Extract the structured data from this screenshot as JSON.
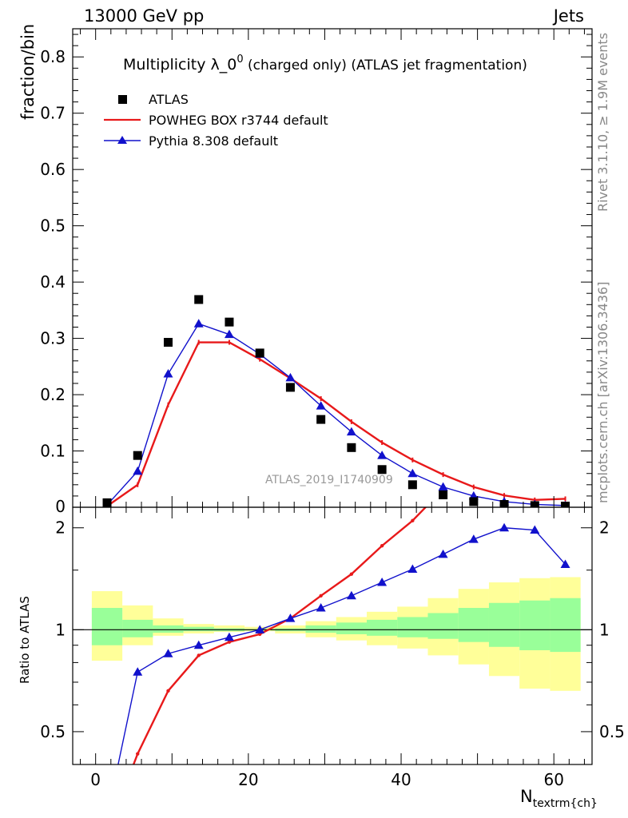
{
  "header": {
    "left": "13000 GeV pp",
    "right": "Jets"
  },
  "side_labels": {
    "rivet": "Rivet 3.1.10, ≥ 1.9M events",
    "mcplots": "mcplots.cern.ch [arXiv:1306.3436]"
  },
  "watermark": "ATLAS_2019_I1740909",
  "chart_data": [
    {
      "type": "scatter",
      "panel": "main",
      "title": "Multiplicity λ_0",
      "title_sup": "0",
      "title_suffix": " (charged only) (ATLAS jet fragmentation)",
      "ylabel": "fraction/bin",
      "xlim": [
        -3,
        65
      ],
      "ylim": [
        0,
        0.85
      ],
      "yticks": [
        0.1,
        0.2,
        0.3,
        0.4,
        0.5,
        0.6,
        0.7,
        0.8
      ],
      "ytick_labels": [
        "0.1",
        "0.2",
        "0.3",
        "0.4",
        "0.5",
        "0.6",
        "0.7",
        "0.8"
      ],
      "y0_label": "0",
      "legend": "top-left",
      "series": [
        {
          "name": "ATLAS",
          "color": "#000000",
          "marker": "square",
          "x": [
            1.5,
            5.5,
            9.5,
            13.5,
            17.5,
            21.5,
            25.5,
            29.5,
            33.5,
            37.5,
            41.5,
            45.5,
            49.5,
            53.5,
            57.5,
            61.5
          ],
          "y": [
            0.008,
            0.092,
            0.293,
            0.369,
            0.329,
            0.274,
            0.213,
            0.156,
            0.106,
            0.067,
            0.04,
            0.022,
            0.01,
            0.005,
            0.003,
            0.002
          ]
        },
        {
          "name": "POWHEG BOX r3744 default",
          "color": "#e8191a",
          "marker": "none",
          "x": [
            1.5,
            5.5,
            9.5,
            13.5,
            17.5,
            21.5,
            25.5,
            29.5,
            33.5,
            37.5,
            41.5,
            45.5,
            49.5,
            53.5,
            57.5,
            61.5
          ],
          "y": [
            0.002,
            0.04,
            0.182,
            0.293,
            0.293,
            0.263,
            0.229,
            0.193,
            0.152,
            0.115,
            0.084,
            0.058,
            0.036,
            0.021,
            0.013,
            0.015
          ]
        },
        {
          "name": "Pythia 8.308 default",
          "color": "#1111cc",
          "marker": "triangle",
          "x": [
            1.5,
            5.5,
            9.5,
            13.5,
            17.5,
            21.5,
            25.5,
            29.5,
            33.5,
            37.5,
            41.5,
            45.5,
            49.5,
            53.5,
            57.5,
            61.5
          ],
          "y": [
            0.004,
            0.064,
            0.237,
            0.326,
            0.307,
            0.272,
            0.23,
            0.18,
            0.134,
            0.092,
            0.06,
            0.036,
            0.02,
            0.01,
            0.005,
            0.003
          ]
        }
      ]
    },
    {
      "type": "line",
      "panel": "ratio",
      "ylabel": "Ratio to ATLAS",
      "xlabel": "N",
      "xlabel_sub": "textrm{ch}",
      "xlim": [
        -3,
        65
      ],
      "ylim": [
        0.4,
        2.3
      ],
      "yscale": "log",
      "yticks": [
        0.5,
        1,
        2
      ],
      "ytick_labels": [
        "0.5",
        "1",
        "2"
      ],
      "xticks": [
        0,
        20,
        40,
        60
      ],
      "xtick_labels": [
        "0",
        "20",
        "40",
        "60"
      ],
      "bin_edges": [
        -0.5,
        3.5,
        7.5,
        11.5,
        15.5,
        19.5,
        23.5,
        27.5,
        31.5,
        35.5,
        39.5,
        43.5,
        47.5,
        51.5,
        55.5,
        59.5,
        63.5
      ],
      "band_stat": {
        "color": "#99ff99",
        "lo": [
          0.9,
          0.95,
          0.98,
          0.99,
          0.99,
          0.995,
          0.99,
          0.98,
          0.97,
          0.96,
          0.95,
          0.94,
          0.92,
          0.89,
          0.87,
          0.86
        ],
        "hi": [
          1.16,
          1.07,
          1.03,
          1.02,
          1.01,
          1.005,
          1.01,
          1.03,
          1.05,
          1.07,
          1.09,
          1.12,
          1.16,
          1.2,
          1.22,
          1.24
        ]
      },
      "band_total": {
        "color": "#ffff99",
        "lo": [
          0.81,
          0.9,
          0.96,
          0.975,
          0.985,
          0.99,
          0.975,
          0.95,
          0.93,
          0.9,
          0.88,
          0.84,
          0.79,
          0.73,
          0.67,
          0.66
        ],
        "hi": [
          1.3,
          1.18,
          1.08,
          1.04,
          1.03,
          1.02,
          1.03,
          1.06,
          1.09,
          1.13,
          1.17,
          1.24,
          1.32,
          1.38,
          1.42,
          1.43
        ]
      },
      "series": [
        {
          "name": "POWHEG BOX r3744 default",
          "color": "#e8191a",
          "marker": "dot",
          "x": [
            1.5,
            5.5,
            9.5,
            13.5,
            17.5,
            21.5,
            25.5,
            29.5,
            33.5,
            37.5,
            41.5,
            45.5
          ],
          "y": [
            0.25,
            0.43,
            0.66,
            0.84,
            0.92,
            0.97,
            1.08,
            1.26,
            1.46,
            1.77,
            2.1,
            2.6
          ]
        },
        {
          "name": "Pythia 8.308 default",
          "color": "#1111cc",
          "marker": "triangle",
          "x": [
            1.5,
            5.5,
            9.5,
            13.5,
            17.5,
            21.5,
            25.5,
            29.5,
            33.5,
            37.5,
            41.5,
            45.5,
            49.5,
            53.5,
            57.5,
            61.5
          ],
          "y": [
            0.28,
            0.75,
            0.85,
            0.9,
            0.95,
            1.0,
            1.08,
            1.16,
            1.26,
            1.38,
            1.51,
            1.67,
            1.85,
            2.0,
            1.97,
            1.56
          ]
        }
      ]
    }
  ]
}
